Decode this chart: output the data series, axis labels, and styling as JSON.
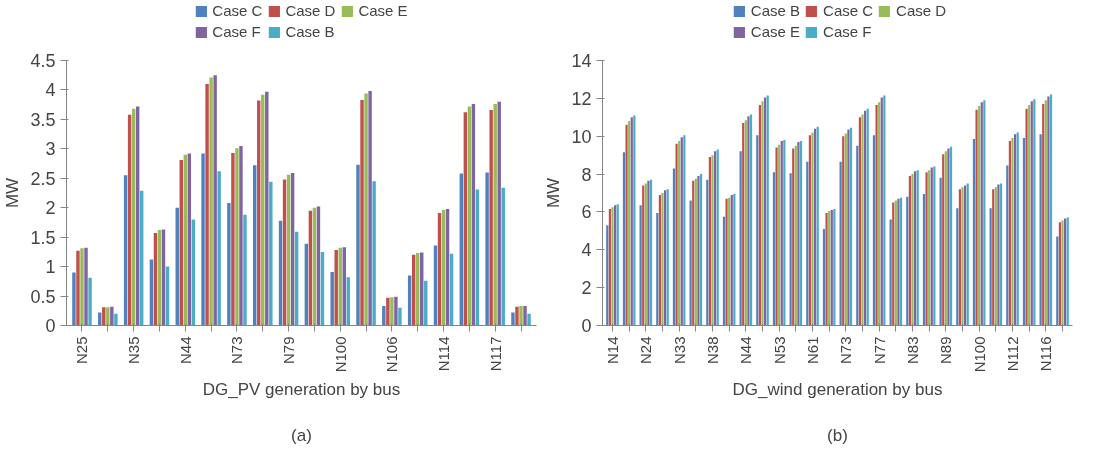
{
  "chart_data": [
    {
      "type": "bar",
      "xlabel": "DG_PV generation by bus",
      "ylabel": "MW",
      "annotations": [
        "(a)"
      ],
      "legend": "top",
      "grid": false,
      "categories": [
        "N25",
        null,
        "N35",
        null,
        "N44",
        null,
        "N73",
        null,
        "N79",
        null,
        "N100",
        null,
        "N106",
        null,
        "N114",
        null,
        "N117",
        null
      ],
      "ylim": [
        0,
        4.5
      ],
      "yticks": [
        0,
        0.5,
        1,
        1.5,
        2,
        2.5,
        3,
        3.5,
        4,
        4.5
      ],
      "series": [
        {
          "name": "Case C",
          "color": "#4f81bd",
          "values": [
            0.9,
            0.22,
            2.55,
            1.12,
            2.0,
            2.92,
            2.08,
            2.72,
            1.78,
            1.39,
            0.91,
            2.73,
            0.33,
            0.85,
            1.36,
            2.58,
            2.6,
            0.22
          ]
        },
        {
          "name": "Case D",
          "color": "#c0504d",
          "values": [
            1.27,
            0.31,
            3.58,
            1.57,
            2.81,
            4.1,
            2.93,
            3.82,
            2.48,
            1.95,
            1.28,
            3.83,
            0.47,
            1.2,
            1.91,
            3.62,
            3.66,
            0.32
          ]
        },
        {
          "name": "Case E",
          "color": "#9bbb59",
          "values": [
            1.31,
            0.31,
            3.68,
            1.62,
            2.9,
            4.21,
            3.01,
            3.92,
            2.56,
            2.0,
            1.32,
            3.94,
            0.48,
            1.23,
            1.96,
            3.72,
            3.76,
            0.33
          ]
        },
        {
          "name": "Case F",
          "color": "#8064a2",
          "values": [
            1.32,
            0.32,
            3.72,
            1.63,
            2.92,
            4.25,
            3.05,
            3.97,
            2.59,
            2.02,
            1.33,
            3.98,
            0.49,
            1.24,
            1.98,
            3.76,
            3.8,
            0.33
          ]
        },
        {
          "name": "Case B",
          "color": "#4bacc6",
          "values": [
            0.81,
            0.2,
            2.29,
            1.0,
            1.8,
            2.62,
            1.88,
            2.44,
            1.59,
            1.25,
            0.82,
            2.45,
            0.3,
            0.76,
            1.22,
            2.31,
            2.34,
            0.2
          ]
        }
      ]
    },
    {
      "type": "bar",
      "xlabel": "DG_wind generation by bus",
      "ylabel": "MW",
      "annotations": [
        "(b)"
      ],
      "legend": "top",
      "grid": false,
      "categories": [
        "N14",
        null,
        "N24",
        null,
        "N33",
        null,
        "N38",
        null,
        "N44",
        null,
        "N53",
        null,
        "N61",
        null,
        "N73",
        null,
        "N77",
        null,
        "N83",
        null,
        "N89",
        null,
        "N100",
        null,
        "N112",
        null,
        "N116",
        null
      ],
      "ylim": [
        0,
        14
      ],
      "yticks": [
        0,
        2,
        4,
        6,
        8,
        10,
        12,
        14
      ],
      "series": [
        {
          "name": "Case B",
          "color": "#4f81bd",
          "values": [
            5.3,
            9.15,
            6.35,
            5.95,
            8.3,
            6.6,
            7.7,
            5.75,
            9.2,
            10.05,
            8.1,
            8.05,
            8.65,
            5.1,
            8.65,
            9.5,
            10.05,
            5.6,
            6.8,
            6.95,
            7.8,
            6.2,
            9.85,
            6.2,
            8.45,
            9.9,
            10.1,
            4.7
          ]
        },
        {
          "name": "Case C",
          "color": "#c0504d",
          "values": [
            6.15,
            10.6,
            7.4,
            6.9,
            9.6,
            7.65,
            8.9,
            6.7,
            10.7,
            11.65,
            9.4,
            9.35,
            10.05,
            5.95,
            10.0,
            11.0,
            11.65,
            6.5,
            7.9,
            8.1,
            9.05,
            7.2,
            11.4,
            7.2,
            9.75,
            11.45,
            11.7,
            5.45
          ]
        },
        {
          "name": "Case D",
          "color": "#9bbb59",
          "values": [
            6.25,
            10.8,
            7.5,
            7.0,
            9.75,
            7.75,
            9.0,
            6.75,
            10.85,
            11.85,
            9.55,
            9.5,
            10.2,
            6.05,
            10.15,
            11.15,
            11.8,
            6.6,
            8.0,
            8.2,
            9.2,
            7.3,
            11.6,
            7.3,
            9.9,
            11.65,
            11.9,
            5.55
          ]
        },
        {
          "name": "Case E",
          "color": "#8064a2",
          "values": [
            6.35,
            11.0,
            7.65,
            7.15,
            9.95,
            7.9,
            9.2,
            6.9,
            11.05,
            12.05,
            9.75,
            9.7,
            10.4,
            6.1,
            10.35,
            11.35,
            12.05,
            6.7,
            8.15,
            8.35,
            9.35,
            7.4,
            11.8,
            7.45,
            10.1,
            11.85,
            12.1,
            5.65
          ]
        },
        {
          "name": "Case F",
          "color": "#4bacc6",
          "values": [
            6.4,
            11.1,
            7.7,
            7.2,
            10.05,
            8.0,
            9.3,
            6.95,
            11.15,
            12.15,
            9.8,
            9.75,
            10.5,
            6.15,
            10.45,
            11.45,
            12.15,
            6.75,
            8.2,
            8.4,
            9.45,
            7.5,
            11.9,
            7.5,
            10.2,
            11.95,
            12.2,
            5.7
          ]
        }
      ]
    }
  ]
}
